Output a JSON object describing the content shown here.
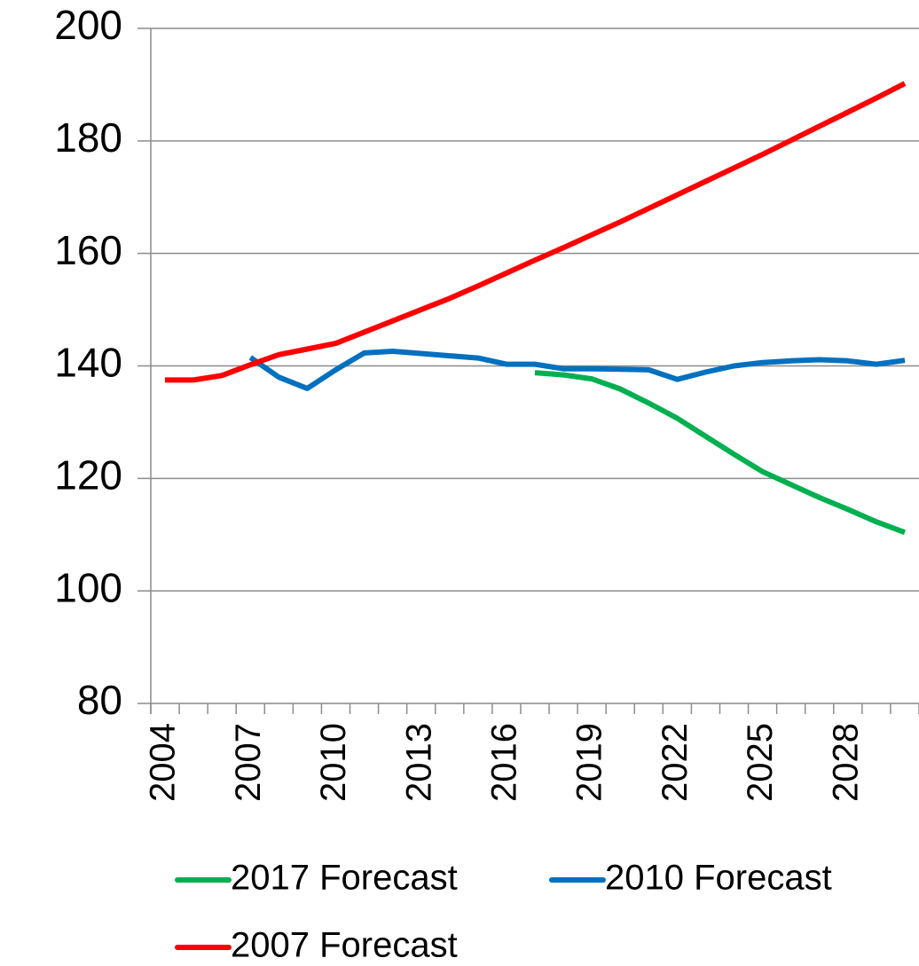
{
  "chart_data": {
    "type": "line",
    "categories": [
      "2004",
      null,
      null,
      "2007",
      null,
      null,
      "2010",
      null,
      null,
      "2013",
      null,
      null,
      "2016",
      null,
      null,
      "2019",
      null,
      null,
      "2022",
      null,
      null,
      "2025",
      null,
      null,
      "2028",
      null,
      null
    ],
    "series": [
      {
        "name": "2017 Forecast",
        "color": "#00b050",
        "values": [
          null,
          null,
          null,
          null,
          null,
          null,
          null,
          null,
          null,
          null,
          null,
          null,
          null,
          138.8,
          138.4,
          137.7,
          135.9,
          133.4,
          130.7,
          127.5,
          124.3,
          121.2,
          118.9,
          116.6,
          114.5,
          112.3,
          110.4
        ]
      },
      {
        "name": "2010 Forecast",
        "color": "#0070c0",
        "values": [
          null,
          null,
          null,
          141.5,
          138,
          136,
          139.3,
          142.3,
          142.6,
          142.2,
          141.8,
          141.4,
          140.3,
          140.3,
          139.5,
          139.5,
          139.4,
          139.3,
          137.6,
          138.9,
          140,
          140.6,
          140.9,
          141.1,
          140.9,
          140.3,
          141
        ]
      },
      {
        "name": "2007 Forecast",
        "color": "#ff0000",
        "values": [
          137.5,
          137.5,
          138.3,
          140.2,
          142,
          143,
          144,
          146,
          148,
          150,
          152,
          154.2,
          156.5,
          158.8,
          161,
          163.3,
          165.6,
          168,
          170.4,
          172.8,
          175.2,
          177.6,
          180.1,
          182.6,
          185.1,
          187.6,
          190.2
        ]
      }
    ],
    "ylim": [
      80,
      200
    ],
    "yticks": [
      80,
      100,
      120,
      140,
      160,
      180,
      200
    ],
    "grid": true,
    "legend": "bottom"
  }
}
